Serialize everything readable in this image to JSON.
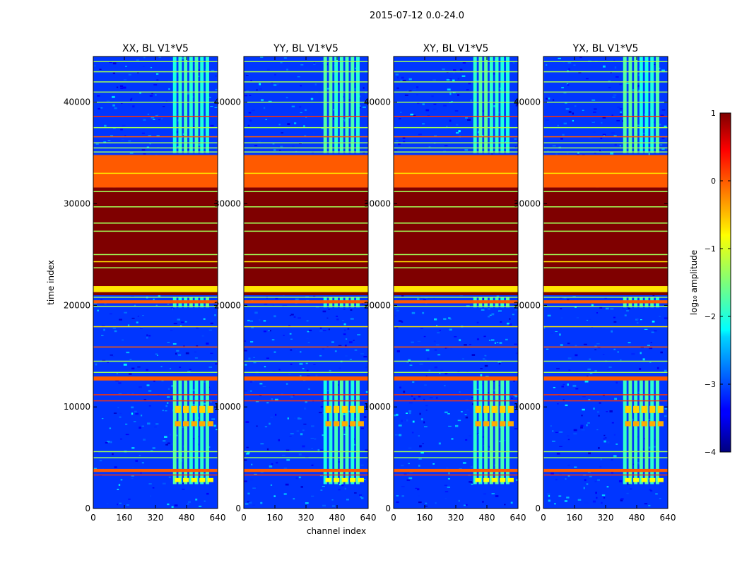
{
  "chart_data": {
    "type": "heatmap",
    "suptitle": "2015-07-12 0.0-24.0",
    "xlabel": "channel index",
    "ylabel": "time index",
    "xlim": [
      0,
      640
    ],
    "ylim": [
      0,
      44500
    ],
    "xticks": [
      0,
      160,
      320,
      480,
      640
    ],
    "yticks": [
      0,
      10000,
      20000,
      30000,
      40000
    ],
    "panels": [
      {
        "title": "XX, BL V1*V5"
      },
      {
        "title": "YY, BL V1*V5"
      },
      {
        "title": "XY, BL V1*V5"
      },
      {
        "title": "YX, BL V1*V5"
      }
    ],
    "colorbar": {
      "label": "log₁₀ amplitude",
      "vmin": -4,
      "vmax": 1,
      "ticks": [
        -4,
        -3,
        -2,
        -1,
        0,
        1
      ],
      "tick_labels": [
        "−4",
        "−3",
        "−2",
        "−1",
        "0",
        "1"
      ],
      "colormap": "jet"
    },
    "rfi_channel_band": [
      410,
      600
    ],
    "bands": [
      {
        "t0": 31600,
        "t1": 34800,
        "value": 0.0
      },
      {
        "t0": 21000,
        "t1": 31600,
        "value": 1.0
      },
      {
        "t0": 21300,
        "t1": 21900,
        "value": -0.7
      },
      {
        "t0": 20200,
        "t1": 20500,
        "value": 0.0
      },
      {
        "t0": 3600,
        "t1": 3900,
        "value": 0.0
      },
      {
        "t0": 12600,
        "t1": 13000,
        "value": 0.0
      }
    ],
    "lines": [
      {
        "t": 44000,
        "value": -1.3
      },
      {
        "t": 43000,
        "value": -1.3
      },
      {
        "t": 42000,
        "value": -1.3
      },
      {
        "t": 41000,
        "value": -1.3
      },
      {
        "t": 40000,
        "value": -1.3
      },
      {
        "t": 38600,
        "value": 0.2
      },
      {
        "t": 37500,
        "value": -1.3
      },
      {
        "t": 36600,
        "value": 0.0
      },
      {
        "t": 36000,
        "value": -1.3
      },
      {
        "t": 35500,
        "value": -1.3
      },
      {
        "t": 35100,
        "value": -1.3
      },
      {
        "t": 33000,
        "value": -0.7
      },
      {
        "t": 31200,
        "value": -1.3
      },
      {
        "t": 29700,
        "value": -1.3
      },
      {
        "t": 28100,
        "value": -1.3
      },
      {
        "t": 27300,
        "value": -1.3
      },
      {
        "t": 25000,
        "value": -1.3
      },
      {
        "t": 24300,
        "value": -0.7
      },
      {
        "t": 23700,
        "value": -1.3
      },
      {
        "t": 20800,
        "value": -1.3
      },
      {
        "t": 19900,
        "value": -1.3
      },
      {
        "t": 17900,
        "value": -0.7
      },
      {
        "t": 15900,
        "value": 0.0
      },
      {
        "t": 14500,
        "value": -1.3
      },
      {
        "t": 13400,
        "value": -1.3
      },
      {
        "t": 11200,
        "value": 0.2
      },
      {
        "t": 10600,
        "value": 0.2
      },
      {
        "t": 5600,
        "value": -1.3
      },
      {
        "t": 5000,
        "value": -1.3
      },
      {
        "t": 3300,
        "value": 0.2
      }
    ],
    "bright_blobs": [
      {
        "t0": 9400,
        "t1": 10100,
        "value": -0.6
      },
      {
        "t0": 8100,
        "t1": 8600,
        "value": -0.4
      },
      {
        "t0": 2600,
        "t1": 3000,
        "value": -0.8
      }
    ]
  }
}
